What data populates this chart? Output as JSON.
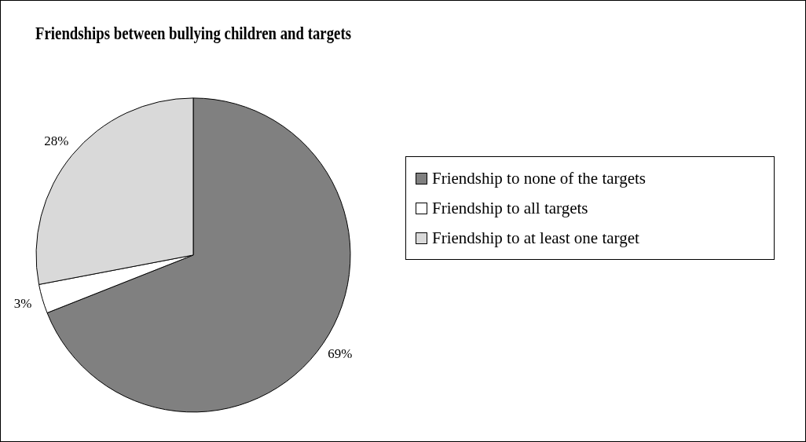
{
  "chart_data": {
    "type": "pie",
    "title": "Friendships between bullying children and targets",
    "categories": [
      "Friendship to none of the targets",
      "Friendship to all targets",
      "Friendship to at least one target"
    ],
    "values": [
      69,
      3,
      28
    ],
    "colors": [
      "#808080",
      "#ffffff",
      "#d9d9d9"
    ],
    "value_labels": [
      "69%",
      "3%",
      "28%"
    ],
    "legend": "right"
  }
}
